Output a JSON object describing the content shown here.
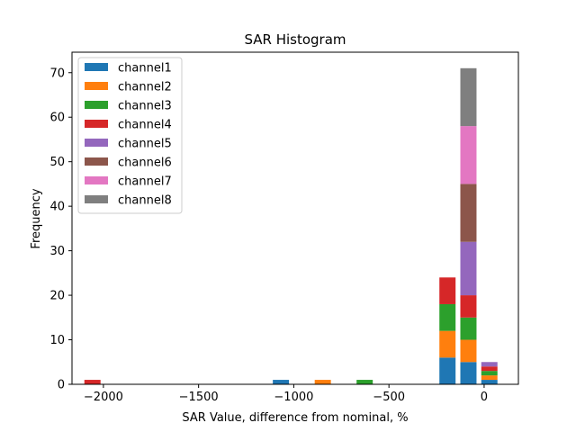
{
  "chart_data": {
    "type": "bar",
    "stacked": true,
    "title": "SAR Histogram",
    "xlabel": "SAR Value, difference from nominal, %",
    "ylabel": "Frequency",
    "xlim": [
      -2165,
      180
    ],
    "ylim": [
      0,
      74.6
    ],
    "x_ticks": [
      {
        "value": -2000,
        "label": "−2000"
      },
      {
        "value": -1500,
        "label": "−1500"
      },
      {
        "value": -1000,
        "label": "−1000"
      },
      {
        "value": -500,
        "label": "−500"
      },
      {
        "value": 0,
        "label": "0"
      }
    ],
    "y_ticks": [
      {
        "value": 0,
        "label": "0"
      },
      {
        "value": 10,
        "label": "10"
      },
      {
        "value": 20,
        "label": "20"
      },
      {
        "value": 30,
        "label": "30"
      },
      {
        "value": 40,
        "label": "40"
      },
      {
        "value": 50,
        "label": "50"
      },
      {
        "value": 60,
        "label": "60"
      },
      {
        "value": 70,
        "label": "70"
      }
    ],
    "legend_position": "top-left",
    "series": [
      {
        "name": "channel1",
        "color": "#1f77b4",
        "bins": [
          {
            "x0": -1110,
            "x1": -1025,
            "count": 1
          },
          {
            "x0": -235,
            "x1": -150,
            "count": 6
          },
          {
            "x0": -125,
            "x1": -40,
            "count": 5
          },
          {
            "x0": -15,
            "x1": 70,
            "count": 1
          }
        ]
      },
      {
        "name": "channel2",
        "color": "#ff7f0e",
        "bins": [
          {
            "x0": -890,
            "x1": -805,
            "count": 1
          },
          {
            "x0": -235,
            "x1": -150,
            "count": 6
          },
          {
            "x0": -125,
            "x1": -40,
            "count": 5
          },
          {
            "x0": -15,
            "x1": 70,
            "count": 1
          }
        ]
      },
      {
        "name": "channel3",
        "color": "#2ca02c",
        "bins": [
          {
            "x0": -670,
            "x1": -585,
            "count": 1
          },
          {
            "x0": -235,
            "x1": -150,
            "count": 6
          },
          {
            "x0": -125,
            "x1": -40,
            "count": 5
          },
          {
            "x0": -15,
            "x1": 70,
            "count": 1
          }
        ]
      },
      {
        "name": "channel4",
        "color": "#d62728",
        "bins": [
          {
            "x0": -2100,
            "x1": -2015,
            "count": 1
          },
          {
            "x0": -235,
            "x1": -150,
            "count": 6
          },
          {
            "x0": -125,
            "x1": -40,
            "count": 5
          },
          {
            "x0": -15,
            "x1": 70,
            "count": 1
          }
        ]
      },
      {
        "name": "channel5",
        "color": "#9467bd",
        "bins": [
          {
            "x0": -125,
            "x1": -40,
            "count": 12
          },
          {
            "x0": -15,
            "x1": 70,
            "count": 1
          }
        ]
      },
      {
        "name": "channel6",
        "color": "#8c564b",
        "bins": [
          {
            "x0": -125,
            "x1": -40,
            "count": 13
          }
        ]
      },
      {
        "name": "channel7",
        "color": "#e377c2",
        "bins": [
          {
            "x0": -125,
            "x1": -40,
            "count": 13
          }
        ]
      },
      {
        "name": "channel8",
        "color": "#7f7f7f",
        "bins": [
          {
            "x0": -125,
            "x1": -40,
            "count": 13
          }
        ]
      }
    ]
  }
}
